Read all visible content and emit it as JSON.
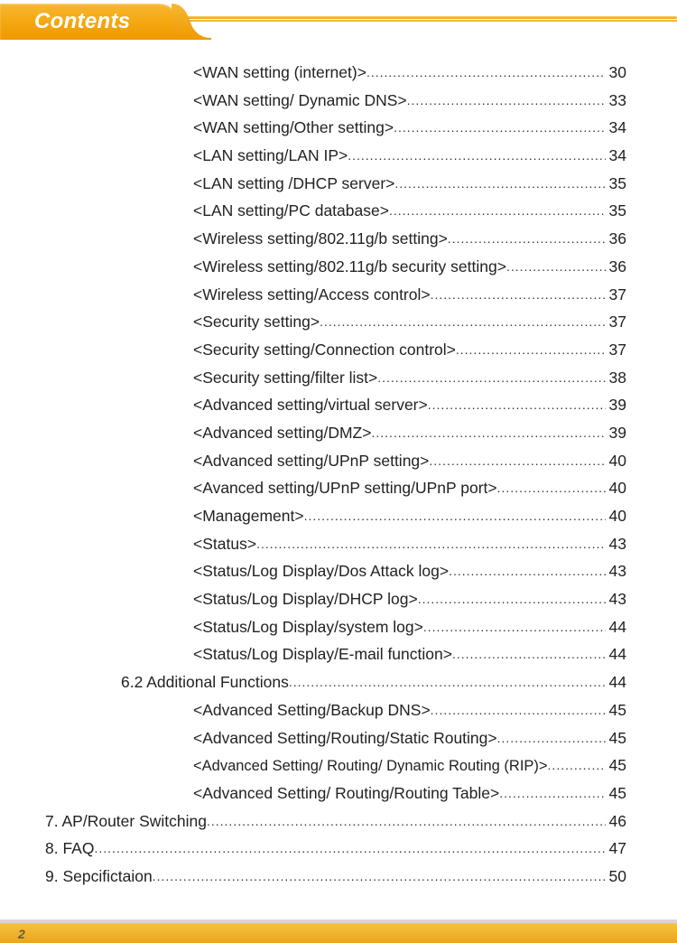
{
  "header": {
    "title": "Contents"
  },
  "footer": {
    "page_number": "2"
  },
  "colors": {
    "tab_gradient_top": "#f7b733",
    "tab_gradient_bottom": "#ef9900",
    "gold_line": "#f0b93c",
    "footer_gold_top": "#f7c23e",
    "footer_gold_bottom": "#eaa520",
    "text": "#222222"
  },
  "toc": [
    {
      "level": 2,
      "label": "<WAN setting (internet)>",
      "page": "30"
    },
    {
      "level": 2,
      "label": "<WAN setting/ Dynamic DNS>",
      "page": "33"
    },
    {
      "level": 2,
      "label": "<WAN setting/Other setting>",
      "page": "34"
    },
    {
      "level": 2,
      "label": "<LAN setting/LAN IP>",
      "page": "34"
    },
    {
      "level": 2,
      "label": "<LAN setting /DHCP server>",
      "page": "35"
    },
    {
      "level": 2,
      "label": "<LAN setting/PC database>",
      "page": "35"
    },
    {
      "level": 2,
      "label": "<Wireless setting/802.11g/b setting>",
      "page": "36"
    },
    {
      "level": 2,
      "label": "<Wireless setting/802.11g/b security setting>",
      "page": "36"
    },
    {
      "level": 2,
      "label": "<Wireless setting/Access control>",
      "page": "37"
    },
    {
      "level": 2,
      "label": "<Security setting>",
      "page": "37"
    },
    {
      "level": 2,
      "label": "<Security setting/Connection control>",
      "page": "37"
    },
    {
      "level": 2,
      "label": "<Security setting/filter list>",
      "page": "38"
    },
    {
      "level": 2,
      "label": "<Advanced setting/virtual server>",
      "page": "39"
    },
    {
      "level": 2,
      "label": "<Advanced setting/DMZ>",
      "page": "39"
    },
    {
      "level": 2,
      "label": "<Advanced setting/UPnP setting>",
      "page": "40"
    },
    {
      "level": 2,
      "label": "<Avanced setting/UPnP setting/UPnP port>",
      "page": "40"
    },
    {
      "level": 2,
      "label": "<Management>",
      "page": "40"
    },
    {
      "level": 2,
      "label": "<Status>",
      "page": "43"
    },
    {
      "level": 2,
      "label": "<Status/Log Display/Dos Attack log>",
      "page": "43"
    },
    {
      "level": 2,
      "label": "<Status/Log Display/DHCP log>",
      "page": "43"
    },
    {
      "level": 2,
      "label": "<Status/Log Display/system log>",
      "page": "44"
    },
    {
      "level": 2,
      "label": "<Status/Log Display/E-mail function>",
      "page": "44"
    },
    {
      "level": 1,
      "label": "6.2 Additional Functions",
      "page": "44"
    },
    {
      "level": 2,
      "label": "<Advanced Setting/Backup DNS>",
      "page": "45"
    },
    {
      "level": 2,
      "label": "<Advanced Setting/Routing/Static Routing>",
      "page": "45"
    },
    {
      "level": 2,
      "label": "<Advanced Setting/ Routing/ Dynamic Routing (RIP)>",
      "page": "45",
      "small": true
    },
    {
      "level": 2,
      "label": "<Advanced Setting/ Routing/Routing Table>",
      "page": "45"
    },
    {
      "level": 0,
      "label": "7. AP/Router Switching",
      "page": "46"
    },
    {
      "level": 0,
      "label": "8. FAQ",
      "page": "47"
    },
    {
      "level": 0,
      "label": "9. Sepcifictaion",
      "page": "50"
    }
  ]
}
